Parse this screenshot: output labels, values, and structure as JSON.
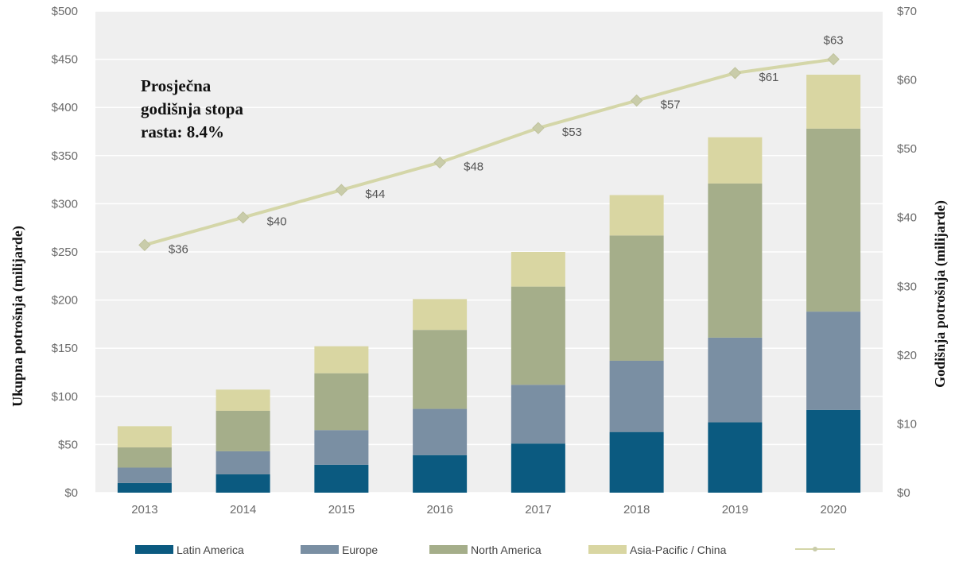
{
  "chart_data": {
    "type": "bar",
    "stacked": true,
    "categories": [
      "2013",
      "2014",
      "2015",
      "2016",
      "2017",
      "2018",
      "2019",
      "2020"
    ],
    "series": [
      {
        "name": "Latin America",
        "color": "#0b5a80",
        "values": [
          10,
          19,
          29,
          39,
          51,
          63,
          73,
          86
        ]
      },
      {
        "name": "Europe",
        "color": "#7a8fa3",
        "values": [
          16,
          24,
          36,
          48,
          61,
          74,
          88,
          102
        ]
      },
      {
        "name": "North America",
        "color": "#a5ae8a",
        "values": [
          21,
          42,
          59,
          82,
          102,
          130,
          160,
          190
        ]
      },
      {
        "name": "Asia-Pacific / China",
        "color": "#d9d6a2",
        "values": [
          22,
          22,
          28,
          32,
          36,
          42,
          48,
          56
        ]
      }
    ],
    "line": {
      "name": "",
      "color": "#d4d6a8",
      "values": [
        36,
        40,
        44,
        48,
        53,
        57,
        61,
        63
      ],
      "labels": [
        "$36",
        "$40",
        "$44",
        "$48",
        "$53",
        "$57",
        "$61",
        "$63"
      ]
    },
    "ylabel": "Ukupna potrošnja  (milijarde)",
    "y2label": "Godišnja potrošnja (milijarde)",
    "ylim": [
      0,
      500
    ],
    "y2lim": [
      0,
      70
    ],
    "yticks": [
      "$0",
      "$50",
      "$100",
      "$150",
      "$200",
      "$250",
      "$300",
      "$350",
      "$400",
      "$450",
      "$500"
    ],
    "y2ticks": [
      "$0",
      "$10",
      "$20",
      "$30",
      "$40",
      "$50",
      "$60",
      "$70"
    ],
    "annotation": [
      "Prosječna",
      "godišnja stopa",
      "rasta:  8.4%"
    ],
    "grid": true,
    "legend_position": "bottom",
    "plot_background": "#efefef"
  }
}
